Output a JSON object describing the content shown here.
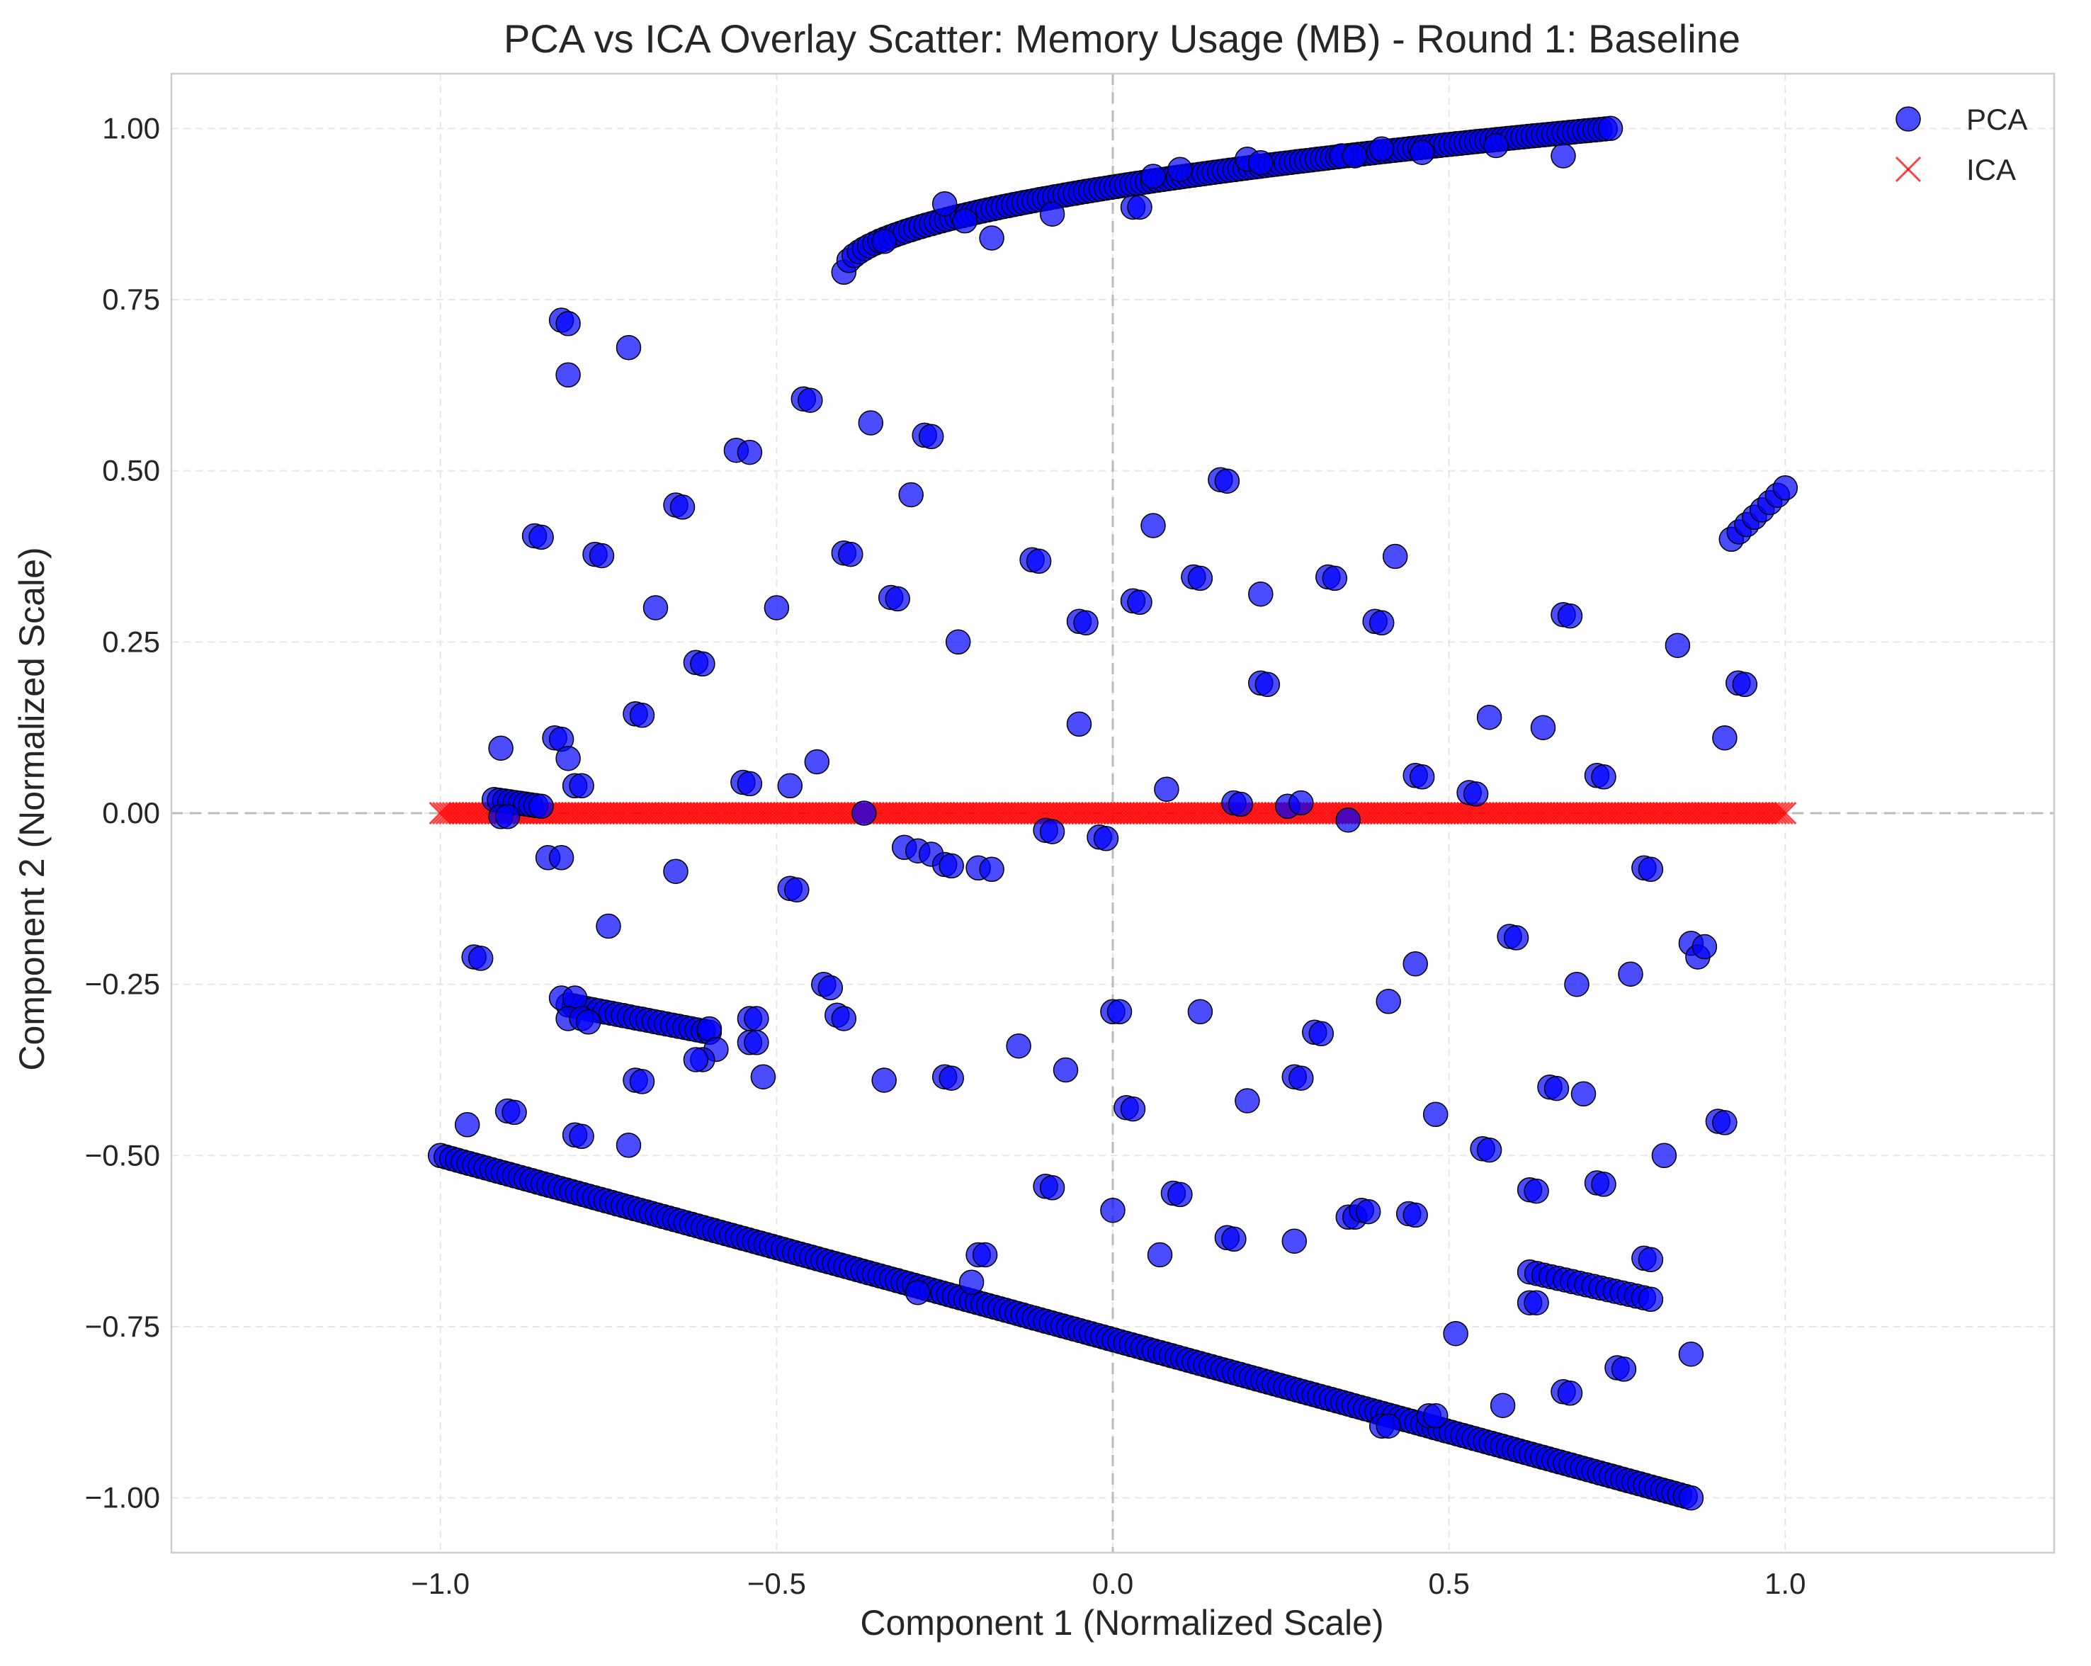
{
  "chart_data": {
    "type": "scatter",
    "title": "PCA vs ICA Overlay Scatter: Memory Usage (MB) - Round 1: Baseline",
    "xlabel": "Component 1 (Normalized Scale)",
    "ylabel": "Component 2 (Normalized Scale)",
    "xlim": [
      -1.4,
      1.4
    ],
    "ylim": [
      -1.08,
      1.08
    ],
    "xticks": [
      -1.0,
      -0.5,
      0.0,
      0.5,
      1.0
    ],
    "xtick_labels": [
      "−1.0",
      "−0.5",
      "0.0",
      "0.5",
      "1.0"
    ],
    "yticks": [
      1.0,
      0.75,
      0.5,
      0.25,
      0.0,
      -0.25,
      -0.5,
      -0.75,
      -1.0
    ],
    "ytick_labels": [
      "1.00",
      "0.75",
      "0.50",
      "0.25",
      "0.00",
      "−0.25",
      "−0.50",
      "−0.75",
      "−1.00"
    ],
    "grid": true,
    "legend_position": "top-right",
    "reference_lines": {
      "x": 0,
      "y": 0
    },
    "series": [
      {
        "name": "PCA",
        "marker": "circle",
        "color": "#0000FF",
        "edge_color": "#000000",
        "lines": [
          {
            "from": [
              -1.0,
              -0.5
            ],
            "to": [
              0.86,
              -1.0
            ],
            "count": 220
          },
          {
            "from": [
              -0.81,
              -0.28
            ],
            "to": [
              -0.6,
              -0.32
            ],
            "count": 24
          },
          {
            "from": [
              -0.92,
              0.02
            ],
            "to": [
              -0.85,
              0.01
            ],
            "count": 10
          },
          {
            "from": [
              0.62,
              -0.67
            ],
            "to": [
              0.8,
              -0.71
            ],
            "count": 18
          },
          {
            "from": [
              0.92,
              0.4
            ],
            "to": [
              1.0,
              0.475
            ],
            "count": 8
          }
        ],
        "curve": {
          "x_start": -0.4,
          "x_end": 0.74,
          "y_start": 0.79,
          "y_end": 1.0,
          "count": 150
        },
        "points": [
          [
            -0.82,
            0.72
          ],
          [
            -0.81,
            0.715
          ],
          [
            -0.81,
            0.64
          ],
          [
            -0.72,
            0.68
          ],
          [
            -0.46,
            0.605
          ],
          [
            -0.45,
            0.603
          ],
          [
            -0.36,
            0.57
          ],
          [
            -0.28,
            0.552
          ],
          [
            -0.27,
            0.55
          ],
          [
            -0.56,
            0.53
          ],
          [
            -0.54,
            0.527
          ],
          [
            -0.65,
            0.45
          ],
          [
            -0.64,
            0.447
          ],
          [
            -0.3,
            0.465
          ],
          [
            -0.86,
            0.405
          ],
          [
            -0.85,
            0.403
          ],
          [
            -0.77,
            0.378
          ],
          [
            -0.76,
            0.376
          ],
          [
            -0.4,
            0.38
          ],
          [
            -0.39,
            0.378
          ],
          [
            -0.33,
            0.315
          ],
          [
            -0.32,
            0.313
          ],
          [
            -0.68,
            0.3
          ],
          [
            -0.5,
            0.3
          ],
          [
            -0.62,
            0.22
          ],
          [
            -0.61,
            0.218
          ],
          [
            -0.23,
            0.25
          ],
          [
            -0.71,
            0.145
          ],
          [
            -0.7,
            0.143
          ],
          [
            -0.83,
            0.11
          ],
          [
            -0.82,
            0.108
          ],
          [
            -0.81,
            0.08
          ],
          [
            -0.91,
            0.095
          ],
          [
            -0.8,
            0.04
          ],
          [
            -0.79,
            0.04
          ],
          [
            -0.55,
            0.045
          ],
          [
            -0.54,
            0.043
          ],
          [
            -0.48,
            0.04
          ],
          [
            -0.44,
            0.075
          ],
          [
            -0.37,
            0.0
          ],
          [
            -0.91,
            -0.005
          ],
          [
            -0.9,
            -0.005
          ],
          [
            -0.84,
            -0.065
          ],
          [
            -0.82,
            -0.065
          ],
          [
            -0.65,
            -0.085
          ],
          [
            -0.48,
            -0.11
          ],
          [
            -0.47,
            -0.112
          ],
          [
            -0.31,
            -0.05
          ],
          [
            -0.29,
            -0.055
          ],
          [
            -0.27,
            -0.06
          ],
          [
            -0.25,
            -0.075
          ],
          [
            -0.24,
            -0.077
          ],
          [
            -0.2,
            -0.08
          ],
          [
            -0.18,
            -0.082
          ],
          [
            -0.75,
            -0.165
          ],
          [
            -0.95,
            -0.21
          ],
          [
            -0.94,
            -0.212
          ],
          [
            -0.82,
            -0.27
          ],
          [
            -0.8,
            -0.27
          ],
          [
            -0.81,
            -0.3
          ],
          [
            -0.79,
            -0.3
          ],
          [
            -0.78,
            -0.305
          ],
          [
            -0.6,
            -0.315
          ],
          [
            -0.59,
            -0.345
          ],
          [
            -0.61,
            -0.36
          ],
          [
            -0.62,
            -0.36
          ],
          [
            -0.54,
            -0.3
          ],
          [
            -0.53,
            -0.3
          ],
          [
            -0.54,
            -0.335
          ],
          [
            -0.53,
            -0.335
          ],
          [
            -0.43,
            -0.25
          ],
          [
            -0.42,
            -0.255
          ],
          [
            -0.41,
            -0.295
          ],
          [
            -0.4,
            -0.3
          ],
          [
            -0.52,
            -0.385
          ],
          [
            -0.71,
            -0.39
          ],
          [
            -0.7,
            -0.392
          ],
          [
            -0.34,
            -0.39
          ],
          [
            -0.25,
            -0.385
          ],
          [
            -0.24,
            -0.387
          ],
          [
            -0.96,
            -0.455
          ],
          [
            -0.9,
            -0.435
          ],
          [
            -0.89,
            -0.437
          ],
          [
            -0.8,
            -0.47
          ],
          [
            -0.79,
            -0.472
          ],
          [
            -0.72,
            -0.485
          ],
          [
            -0.2,
            -0.645
          ],
          [
            -0.19,
            -0.645
          ],
          [
            -0.21,
            -0.685
          ],
          [
            -0.29,
            -0.7
          ],
          [
            -0.14,
            -0.34
          ],
          [
            -0.07,
            -0.375
          ],
          [
            -0.1,
            -0.545
          ],
          [
            -0.09,
            -0.547
          ],
          [
            -0.1,
            -0.025
          ],
          [
            -0.09,
            -0.027
          ],
          [
            -0.02,
            -0.035
          ],
          [
            -0.01,
            -0.037
          ],
          [
            0.0,
            -0.29
          ],
          [
            0.01,
            -0.29
          ],
          [
            0.02,
            -0.43
          ],
          [
            0.03,
            -0.432
          ],
          [
            0.0,
            -0.58
          ],
          [
            0.07,
            -0.645
          ],
          [
            0.09,
            -0.555
          ],
          [
            0.1,
            -0.557
          ],
          [
            0.13,
            -0.29
          ],
          [
            0.17,
            -0.62
          ],
          [
            0.18,
            -0.622
          ],
          [
            0.2,
            -0.42
          ],
          [
            0.27,
            -0.625
          ],
          [
            -0.12,
            0.37
          ],
          [
            -0.11,
            0.368
          ],
          [
            -0.05,
            0.28
          ],
          [
            -0.04,
            0.278
          ],
          [
            -0.05,
            0.13
          ],
          [
            0.03,
            0.31
          ],
          [
            0.04,
            0.308
          ],
          [
            0.06,
            0.42
          ],
          [
            0.12,
            0.345
          ],
          [
            0.13,
            0.343
          ],
          [
            0.16,
            0.487
          ],
          [
            0.17,
            0.485
          ],
          [
            0.22,
            0.32
          ],
          [
            0.22,
            0.19
          ],
          [
            0.23,
            0.188
          ],
          [
            0.08,
            0.035
          ],
          [
            0.18,
            0.015
          ],
          [
            0.19,
            0.013
          ],
          [
            0.26,
            0.01
          ],
          [
            0.28,
            0.015
          ],
          [
            0.32,
            0.345
          ],
          [
            0.33,
            0.343
          ],
          [
            0.39,
            0.28
          ],
          [
            0.4,
            0.278
          ],
          [
            0.42,
            0.375
          ],
          [
            0.35,
            -0.01
          ],
          [
            0.45,
            0.055
          ],
          [
            0.46,
            0.053
          ],
          [
            0.53,
            0.03
          ],
          [
            0.54,
            0.028
          ],
          [
            0.56,
            0.14
          ],
          [
            0.64,
            0.125
          ],
          [
            0.67,
            0.29
          ],
          [
            0.68,
            0.288
          ],
          [
            0.72,
            0.055
          ],
          [
            0.73,
            0.053
          ],
          [
            0.84,
            0.245
          ],
          [
            0.3,
            -0.32
          ],
          [
            0.31,
            -0.322
          ],
          [
            0.27,
            -0.385
          ],
          [
            0.28,
            -0.387
          ],
          [
            0.35,
            -0.59
          ],
          [
            0.36,
            -0.59
          ],
          [
            0.37,
            -0.58
          ],
          [
            0.38,
            -0.582
          ],
          [
            0.41,
            -0.275
          ],
          [
            0.45,
            -0.22
          ],
          [
            0.44,
            -0.585
          ],
          [
            0.45,
            -0.587
          ],
          [
            0.48,
            -0.44
          ],
          [
            0.4,
            -0.895
          ],
          [
            0.41,
            -0.895
          ],
          [
            0.47,
            -0.88
          ],
          [
            0.48,
            -0.88
          ],
          [
            0.51,
            -0.76
          ],
          [
            0.55,
            -0.49
          ],
          [
            0.56,
            -0.492
          ],
          [
            0.58,
            -0.865
          ],
          [
            0.59,
            -0.18
          ],
          [
            0.6,
            -0.182
          ],
          [
            0.62,
            -0.55
          ],
          [
            0.63,
            -0.552
          ],
          [
            0.62,
            -0.715
          ],
          [
            0.63,
            -0.715
          ],
          [
            0.65,
            -0.4
          ],
          [
            0.66,
            -0.402
          ],
          [
            0.67,
            -0.845
          ],
          [
            0.68,
            -0.847
          ],
          [
            0.69,
            -0.25
          ],
          [
            0.7,
            -0.41
          ],
          [
            0.72,
            -0.54
          ],
          [
            0.73,
            -0.542
          ],
          [
            0.75,
            -0.81
          ],
          [
            0.76,
            -0.812
          ],
          [
            0.77,
            -0.235
          ],
          [
            0.79,
            -0.08
          ],
          [
            0.8,
            -0.082
          ],
          [
            0.79,
            -0.65
          ],
          [
            0.8,
            -0.652
          ],
          [
            0.82,
            -0.5
          ],
          [
            0.86,
            -0.79
          ],
          [
            0.86,
            -0.19
          ],
          [
            0.87,
            -0.21
          ],
          [
            0.88,
            -0.195
          ],
          [
            0.9,
            -0.45
          ],
          [
            0.91,
            -0.452
          ],
          [
            0.91,
            0.11
          ],
          [
            0.93,
            0.19
          ],
          [
            0.94,
            0.188
          ],
          [
            -0.34,
            0.835
          ],
          [
            -0.25,
            0.89
          ],
          [
            -0.22,
            0.865
          ],
          [
            -0.18,
            0.84
          ],
          [
            -0.09,
            0.875
          ],
          [
            0.03,
            0.885
          ],
          [
            0.04,
            0.885
          ],
          [
            0.06,
            0.93
          ],
          [
            0.1,
            0.94
          ],
          [
            0.2,
            0.955
          ],
          [
            0.22,
            0.95
          ],
          [
            0.34,
            0.96
          ],
          [
            0.36,
            0.96
          ],
          [
            0.4,
            0.97
          ],
          [
            0.46,
            0.965
          ],
          [
            0.57,
            0.975
          ],
          [
            0.67,
            0.96
          ]
        ]
      },
      {
        "name": "ICA",
        "marker": "x",
        "color": "#FF0000",
        "x_range": [
          -1.0,
          1.0
        ],
        "y": 0.0,
        "count": 420
      }
    ]
  }
}
